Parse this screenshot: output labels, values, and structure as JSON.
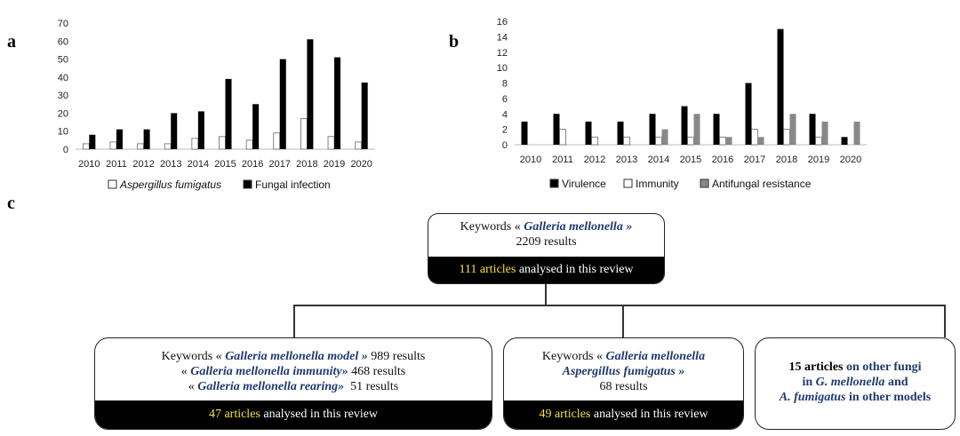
{
  "labels": {
    "a": "a",
    "b": "b",
    "c": "c"
  },
  "chart_data": [
    {
      "type": "bar",
      "panel": "a",
      "categories": [
        "2010",
        "2011",
        "2012",
        "2013",
        "2014",
        "2015",
        "2016",
        "2017",
        "2018",
        "2019",
        "2020"
      ],
      "ylim": [
        0,
        70
      ],
      "yticks": [
        0,
        10,
        20,
        30,
        40,
        50,
        60,
        70
      ],
      "grid": false,
      "legend_position": "bottom",
      "series": [
        {
          "name": "Aspergillus fumigatus",
          "color": "#ffffff",
          "values": [
            3,
            4,
            3,
            3,
            6,
            7,
            5,
            9,
            17,
            7,
            4
          ]
        },
        {
          "name": "Fungal infection",
          "color": "#000000",
          "values": [
            8,
            11,
            11,
            20,
            21,
            39,
            25,
            50,
            61,
            51,
            37
          ]
        }
      ]
    },
    {
      "type": "bar",
      "panel": "b",
      "categories": [
        "2010",
        "2011",
        "2012",
        "2013",
        "2014",
        "2015",
        "2016",
        "2017",
        "2018",
        "2019",
        "2020"
      ],
      "ylim": [
        0,
        16
      ],
      "yticks": [
        0,
        2,
        4,
        6,
        8,
        10,
        12,
        14,
        16
      ],
      "grid": false,
      "legend_position": "bottom",
      "series": [
        {
          "name": "Virulence",
          "color": "#000000",
          "values": [
            3,
            4,
            3,
            3,
            4,
            5,
            4,
            8,
            15,
            4,
            1
          ]
        },
        {
          "name": "Immunity",
          "color": "#ffffff",
          "values": [
            0,
            2,
            1,
            1,
            1,
            1,
            1,
            2,
            2,
            1,
            0
          ]
        },
        {
          "name": "Antifungal resistance",
          "color": "#888888",
          "values": [
            0,
            0,
            0,
            0,
            2,
            4,
            1,
            1,
            4,
            3,
            3
          ]
        }
      ]
    }
  ],
  "flow": {
    "root": {
      "line1_pre": "Keywords « ",
      "line1_kw": "Galleria mellonella »",
      "line2": "2209 results",
      "bar_highlight": "111 articles",
      "bar_rest": " analysed in this review"
    },
    "box1": {
      "l1_pre": "Keywords « ",
      "l1_kw": "Galleria mellonella model »",
      "l1_post": " 989 results",
      "l2_pre": "« ",
      "l2_kw": "Galleria mellonella immunity»",
      "l2_post": " 468 results",
      "l3_pre": "« ",
      "l3_kw": "Galleria mellonella rearing»",
      "l3_post": "  51 results",
      "bar_highlight": "47 articles",
      "bar_rest": " analysed in this review"
    },
    "box2": {
      "l1_pre": "Keywords « ",
      "l1_kw": "Galleria mellonella",
      "l2_kw": "Aspergillus fumigatus »",
      "l3": "68 results",
      "bar_highlight": "49 articles",
      "bar_rest": " analysed in this review"
    },
    "box3": {
      "l1_bold": "15 articles",
      "l1_navy": " on other fungi",
      "l2_navy_a": "in ",
      "l2_kw": "G. mellonella",
      "l2_navy_b": " and",
      "l3_kw": "A. fumigatus",
      "l3_navy": " in other models"
    }
  }
}
